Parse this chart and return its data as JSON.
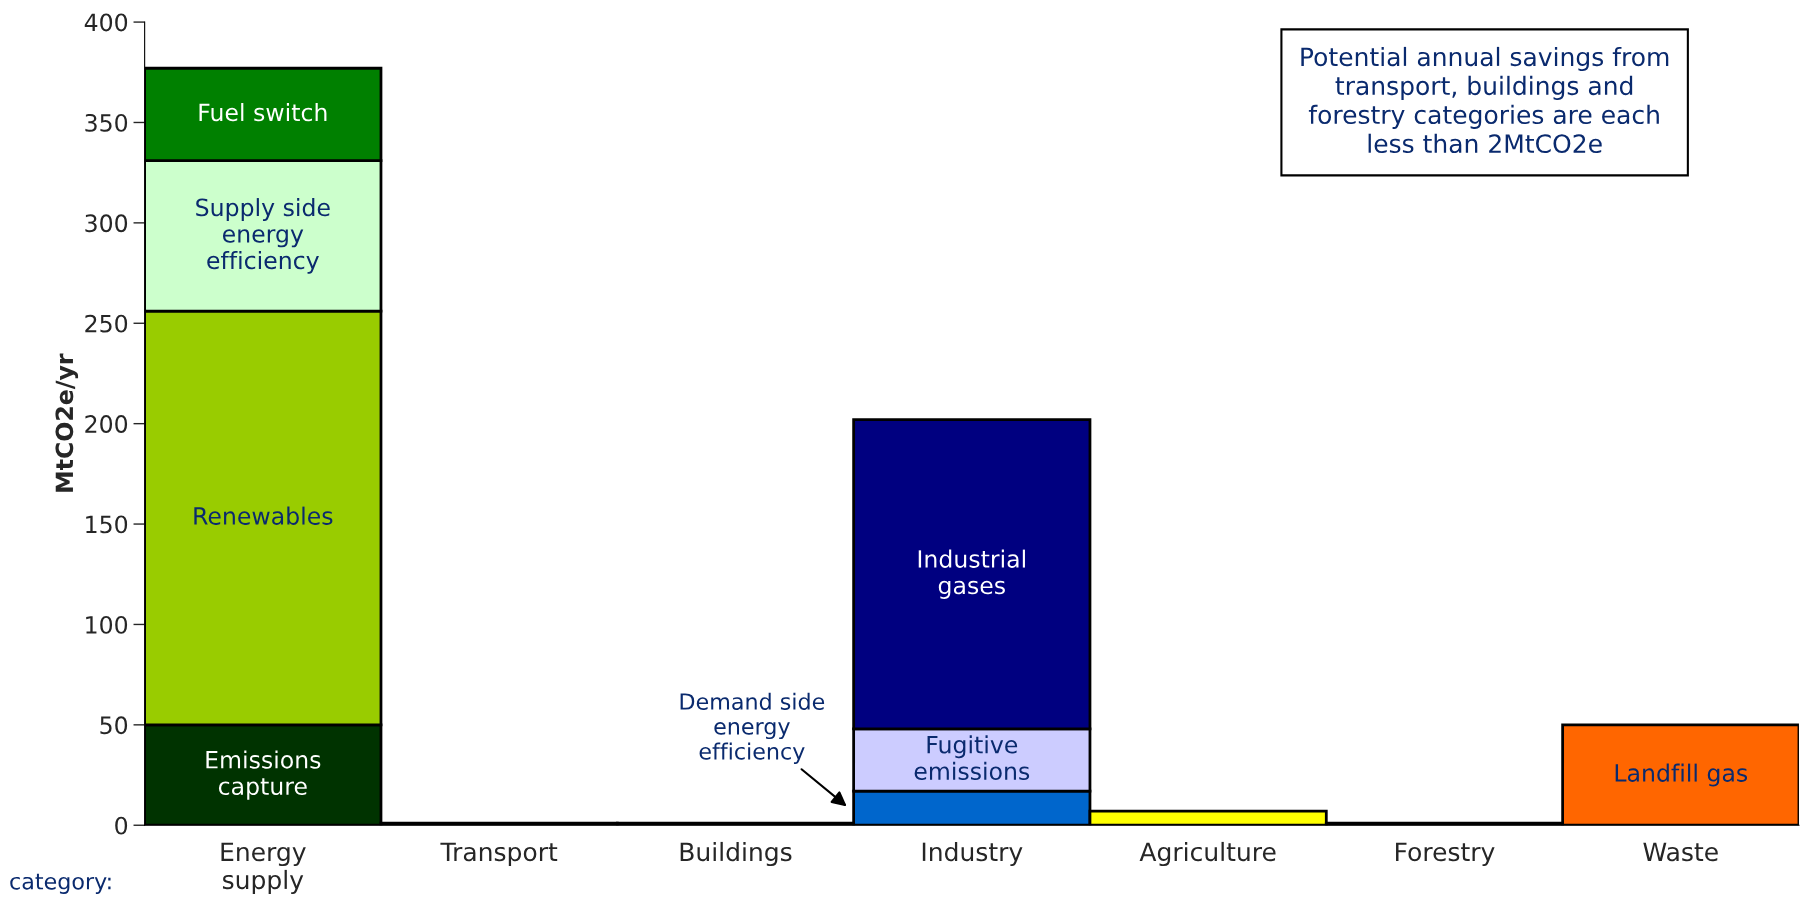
{
  "chart_data": {
    "type": "bar",
    "stacked": true,
    "categories": [
      "Energy\nsupply",
      "Transport",
      "Buildings",
      "Industry",
      "Agriculture",
      "Forestry",
      "Waste"
    ],
    "ylabel": "MtCO2e/yr",
    "ylim": [
      0,
      400
    ],
    "yticks": [
      0,
      50,
      100,
      150,
      200,
      250,
      300,
      350,
      400
    ],
    "grid": false,
    "legend": false,
    "series": [
      {
        "name": "Emissions\ncapture",
        "color": "#003300",
        "values": [
          50,
          null,
          null,
          null,
          null,
          null,
          null
        ]
      },
      {
        "name": "Renewables",
        "color": "#99cc00",
        "values": [
          206,
          null,
          null,
          null,
          null,
          null,
          null
        ]
      },
      {
        "name": "Supply side\nenergy\nefficiency",
        "color": "#ccffcc",
        "values": [
          75,
          null,
          null,
          null,
          null,
          null,
          null
        ]
      },
      {
        "name": "Fuel switch",
        "color": "#008000",
        "values": [
          46,
          null,
          null,
          null,
          null,
          null,
          null
        ]
      },
      {
        "name": "Demand side\nenergy\nefficiency",
        "color": "#0066cc",
        "values": [
          null,
          null,
          null,
          17,
          null,
          null,
          null
        ]
      },
      {
        "name": "Fugitive\nemissions",
        "color": "#ccccff",
        "values": [
          null,
          null,
          null,
          31,
          null,
          null,
          null
        ]
      },
      {
        "name": "Industrial\ngases",
        "color": "#000080",
        "values": [
          null,
          null,
          null,
          154,
          null,
          null,
          null
        ]
      },
      {
        "color": "#ffff00",
        "values": [
          null,
          null,
          null,
          null,
          7,
          null,
          null
        ]
      },
      {
        "color": "#000000",
        "values": [
          null,
          1,
          1,
          null,
          null,
          1,
          null
        ]
      },
      {
        "name": "Landfill gas",
        "color": "#ff6600",
        "values": [
          null,
          null,
          null,
          null,
          null,
          null,
          50
        ]
      }
    ],
    "annotations": [
      "Potential annual savings from\ntransport, buildings and\nforestry categories are each\nless than 2MtCO2e",
      "category:"
    ]
  }
}
